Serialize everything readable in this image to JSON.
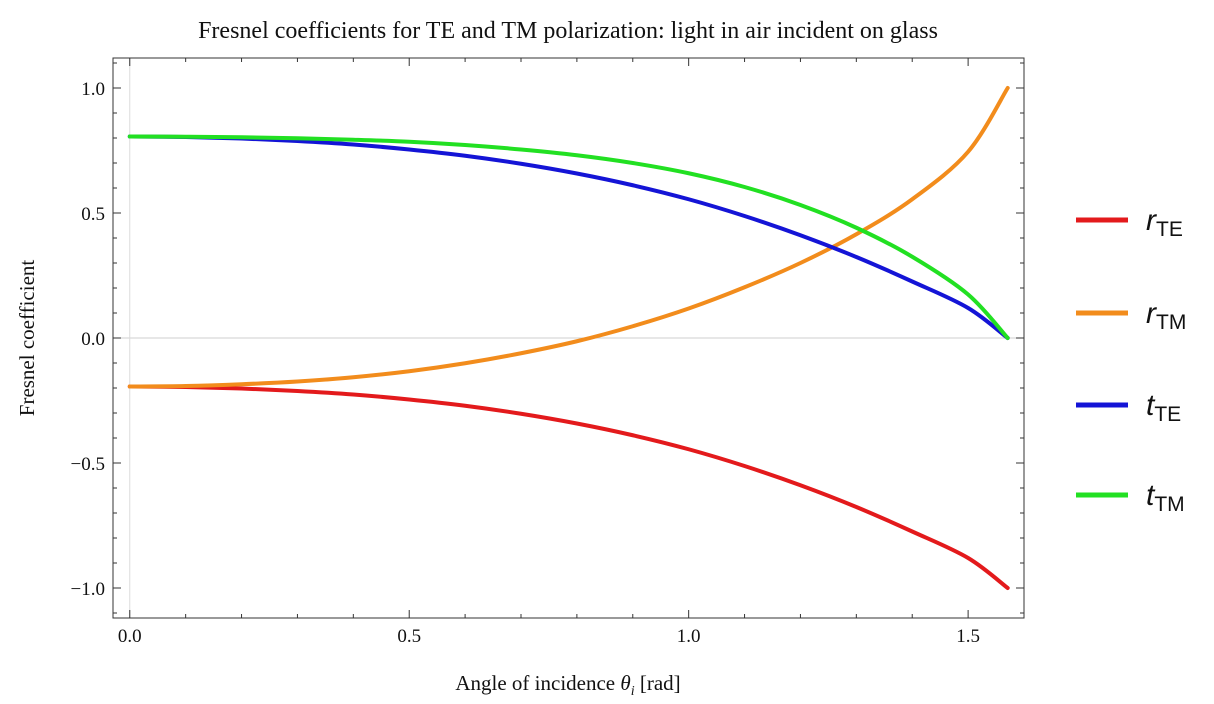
{
  "chart_data": {
    "type": "line",
    "title": "Fresnel coefficients for TE and TM polarization: light in air incident on glass",
    "xlabel": {
      "prefix": "Angle of incidence ",
      "symbol": "θ",
      "subscript": "i",
      "suffix": " [rad]"
    },
    "ylabel": "Fresnel coefficient",
    "xlim": [
      -0.03,
      1.6
    ],
    "ylim": [
      -1.12,
      1.12
    ],
    "xticks": [
      {
        "value": 0.0,
        "label": "0.0"
      },
      {
        "value": 0.5,
        "label": "0.5"
      },
      {
        "value": 1.0,
        "label": "1.0"
      },
      {
        "value": 1.5,
        "label": "1.5"
      }
    ],
    "yticks": [
      {
        "value": 1.0,
        "label": "1.0"
      },
      {
        "value": 0.5,
        "label": "0.5"
      },
      {
        "value": 0.0,
        "label": "0.0"
      },
      {
        "value": -0.5,
        "label": "−0.5"
      },
      {
        "value": -1.0,
        "label": "−1.0"
      }
    ],
    "grid": false,
    "zero_line": true,
    "legend_position": "right",
    "x": [
      0.0,
      0.1,
      0.2,
      0.3,
      0.4,
      0.5,
      0.6,
      0.7,
      0.8,
      0.9,
      1.0,
      1.1,
      1.2,
      1.3,
      1.4,
      1.5,
      1.5708
    ],
    "series": [
      {
        "name": "r",
        "sub": "TE",
        "color": "#e31a1c",
        "values": [
          -0.194,
          -0.196,
          -0.202,
          -0.212,
          -0.226,
          -0.246,
          -0.271,
          -0.303,
          -0.342,
          -0.389,
          -0.445,
          -0.512,
          -0.589,
          -0.676,
          -0.774,
          -0.88,
          -1.0
        ]
      },
      {
        "name": "r",
        "sub": "TM",
        "color": "#f28c1c",
        "values": [
          -0.194,
          -0.192,
          -0.185,
          -0.174,
          -0.157,
          -0.133,
          -0.101,
          -0.061,
          -0.013,
          0.047,
          0.118,
          0.203,
          0.3,
          0.415,
          0.555,
          0.745,
          1.0
        ]
      },
      {
        "name": "t",
        "sub": "TE",
        "color": "#1414d6",
        "values": [
          0.806,
          0.804,
          0.798,
          0.788,
          0.774,
          0.754,
          0.729,
          0.697,
          0.658,
          0.611,
          0.555,
          0.488,
          0.411,
          0.324,
          0.226,
          0.12,
          0.0
        ]
      },
      {
        "name": "t",
        "sub": "TM",
        "color": "#22e022",
        "values": [
          0.806,
          0.805,
          0.803,
          0.799,
          0.793,
          0.785,
          0.772,
          0.754,
          0.731,
          0.7,
          0.659,
          0.604,
          0.532,
          0.441,
          0.325,
          0.174,
          0.0
        ]
      }
    ]
  }
}
